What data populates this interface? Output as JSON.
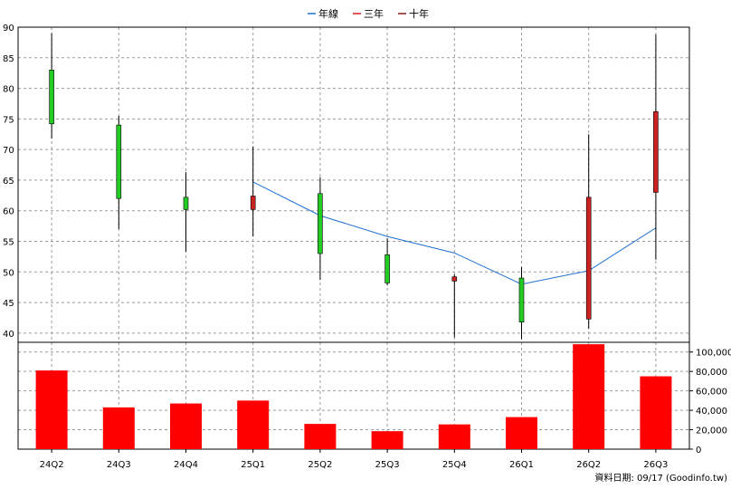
{
  "chart_data": {
    "type": "candlestick+bar",
    "legend": [
      {
        "label": "年線",
        "color": "#1f6fd1"
      },
      {
        "label": "三年",
        "color": "#d42020"
      },
      {
        "label": "十年",
        "color": "#8b1a1a"
      }
    ],
    "categories": [
      "24Q2",
      "24Q3",
      "24Q4",
      "25Q1",
      "25Q2",
      "25Q3",
      "25Q4",
      "26Q1",
      "26Q2",
      "26Q3"
    ],
    "price_axis": {
      "ylim": [
        38.5,
        90
      ],
      "ticks": [
        40,
        45,
        50,
        55,
        60,
        65,
        70,
        75,
        80,
        85,
        90
      ],
      "tick_labels": [
        "40",
        "45",
        "50",
        "55",
        "60",
        "65",
        "70",
        "75",
        "80",
        "85",
        "90"
      ]
    },
    "volume_axis": {
      "ylim": [
        0,
        110000
      ],
      "ticks": [
        0,
        20000,
        40000,
        60000,
        80000,
        100000
      ],
      "tick_labels": [
        "0",
        "20,000",
        "40,000",
        "60,000",
        "80,000",
        "100,000"
      ]
    },
    "candles": [
      {
        "open": 83,
        "close": 74.2,
        "high": 89,
        "low": 71.8
      },
      {
        "open": 74,
        "close": 62,
        "high": 75.5,
        "low": 57
      },
      {
        "open": 62.2,
        "close": 60.2,
        "high": 66.3,
        "low": 53.3
      },
      {
        "open": 60.2,
        "close": 62.4,
        "high": 70.5,
        "low": 55.8
      },
      {
        "open": 62.8,
        "close": 53,
        "high": 65.5,
        "low": 48.7
      },
      {
        "open": 52.8,
        "close": 48.2,
        "high": 55.5,
        "low": 47.8
      },
      {
        "open": 48.5,
        "close": 49.2,
        "high": 49.6,
        "low": 39.3
      },
      {
        "open": 49,
        "close": 41.8,
        "high": 50.8,
        "low": 39
      },
      {
        "open": 42.3,
        "close": 62.2,
        "high": 72.5,
        "low": 40.7
      },
      {
        "open": 63,
        "close": 76.2,
        "high": 88.8,
        "low": 52
      }
    ],
    "year_line": [
      null,
      null,
      null,
      64.7,
      59.2,
      55.8,
      53.1,
      48,
      50.2,
      57.2
    ],
    "volume": [
      81000,
      43000,
      47000,
      50000,
      26000,
      18500,
      25500,
      33000,
      108000,
      75000
    ],
    "up_color": "#cc2222",
    "down_color": "#22cc22",
    "volume_color": "#ff0000",
    "line_color": "#1f6fd1",
    "footer": "資料日期: 09/17  (Goodinfo.tw)"
  }
}
